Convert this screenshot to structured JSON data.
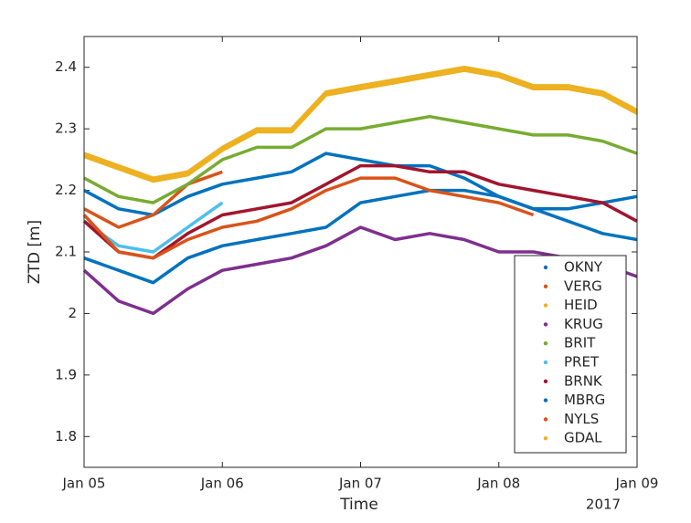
{
  "chart_data": {
    "type": "line",
    "x_label": "Time",
    "y_label": "ZTD [m]",
    "x_secondary_label": "2017",
    "x": [
      "2017-01-05T00:00",
      "2017-01-05T06:00",
      "2017-01-05T12:00",
      "2017-01-05T18:00",
      "2017-01-06T00:00",
      "2017-01-06T06:00",
      "2017-01-06T12:00",
      "2017-01-06T18:00",
      "2017-01-07T00:00",
      "2017-01-07T06:00",
      "2017-01-07T12:00",
      "2017-01-07T18:00",
      "2017-01-08T00:00",
      "2017-01-08T06:00",
      "2017-01-08T12:00",
      "2017-01-08T18:00",
      "2017-01-09T00:00"
    ],
    "xlim": [
      "2017-01-05",
      "2017-01-09"
    ],
    "xticks": [
      {
        "value": "2017-01-05",
        "label": "Jan 05"
      },
      {
        "value": "2017-01-06",
        "label": "Jan 06"
      },
      {
        "value": "2017-01-07",
        "label": "Jan 07"
      },
      {
        "value": "2017-01-08",
        "label": "Jan 08"
      },
      {
        "value": "2017-01-09",
        "label": "Jan 09"
      }
    ],
    "ylim": [
      1.75,
      2.45
    ],
    "yticks": [
      1.8,
      1.9,
      2,
      2.1,
      2.2,
      2.3,
      2.4
    ],
    "legend": "lower right",
    "series": [
      {
        "name": "OKNY",
        "color": "#0072BD",
        "values": [
          2.2,
          2.17,
          2.16,
          2.19,
          2.21,
          2.22,
          2.23,
          2.26,
          2.25,
          2.24,
          2.24,
          2.22,
          2.19,
          2.17,
          2.17,
          2.18,
          2.19
        ]
      },
      {
        "name": "VERG",
        "color": "#D95319",
        "values": [
          2.17,
          2.14,
          2.16,
          2.21,
          2.23,
          null,
          null,
          null,
          null,
          null,
          null,
          null,
          null,
          null,
          null,
          null,
          null
        ]
      },
      {
        "name": "HEID",
        "color": "#EDB120",
        "values": [
          2.255,
          2.235,
          2.215,
          2.225,
          2.265,
          2.295,
          2.295,
          2.355,
          2.365,
          2.375,
          2.385,
          2.395,
          2.385,
          2.365,
          2.365,
          2.355,
          2.325
        ]
      },
      {
        "name": "KRUG",
        "color": "#7E2F8E",
        "values": [
          2.07,
          2.02,
          2.0,
          2.04,
          2.07,
          2.08,
          2.09,
          2.11,
          2.14,
          2.12,
          2.13,
          2.12,
          2.1,
          2.1,
          2.09,
          2.08,
          2.06
        ]
      },
      {
        "name": "BRIT",
        "color": "#77AC30",
        "values": [
          2.22,
          2.19,
          2.18,
          2.21,
          2.25,
          2.27,
          2.27,
          2.3,
          2.3,
          2.31,
          2.32,
          2.31,
          2.3,
          2.29,
          2.29,
          2.28,
          2.26
        ]
      },
      {
        "name": "PRET",
        "color": "#4DBEEE",
        "values": [
          2.15,
          2.11,
          2.1,
          2.14,
          2.18,
          null,
          null,
          null,
          null,
          null,
          null,
          null,
          null,
          null,
          null,
          null,
          null
        ]
      },
      {
        "name": "BRNK",
        "color": "#A2142F",
        "values": [
          2.15,
          2.1,
          2.09,
          2.13,
          2.16,
          2.17,
          2.18,
          2.21,
          2.24,
          2.24,
          2.23,
          2.23,
          2.21,
          2.2,
          2.19,
          2.18,
          2.15
        ]
      },
      {
        "name": "MBRG",
        "color": "#0072BD",
        "values": [
          2.09,
          2.07,
          2.05,
          2.09,
          2.11,
          2.12,
          2.13,
          2.14,
          2.18,
          2.19,
          2.2,
          2.2,
          2.19,
          2.17,
          2.15,
          2.13,
          2.12
        ]
      },
      {
        "name": "NYLS",
        "color": "#D95319",
        "values": [
          2.16,
          2.1,
          2.09,
          2.12,
          2.14,
          2.15,
          2.17,
          2.2,
          2.22,
          2.22,
          2.2,
          2.19,
          2.18,
          2.16,
          null,
          null,
          null
        ]
      },
      {
        "name": "GDAL",
        "color": "#EDB120",
        "values": [
          2.26,
          2.24,
          2.22,
          2.23,
          2.27,
          2.3,
          2.3,
          2.36,
          2.37,
          2.38,
          2.39,
          2.4,
          2.39,
          2.37,
          2.37,
          2.36,
          2.33
        ]
      }
    ]
  }
}
